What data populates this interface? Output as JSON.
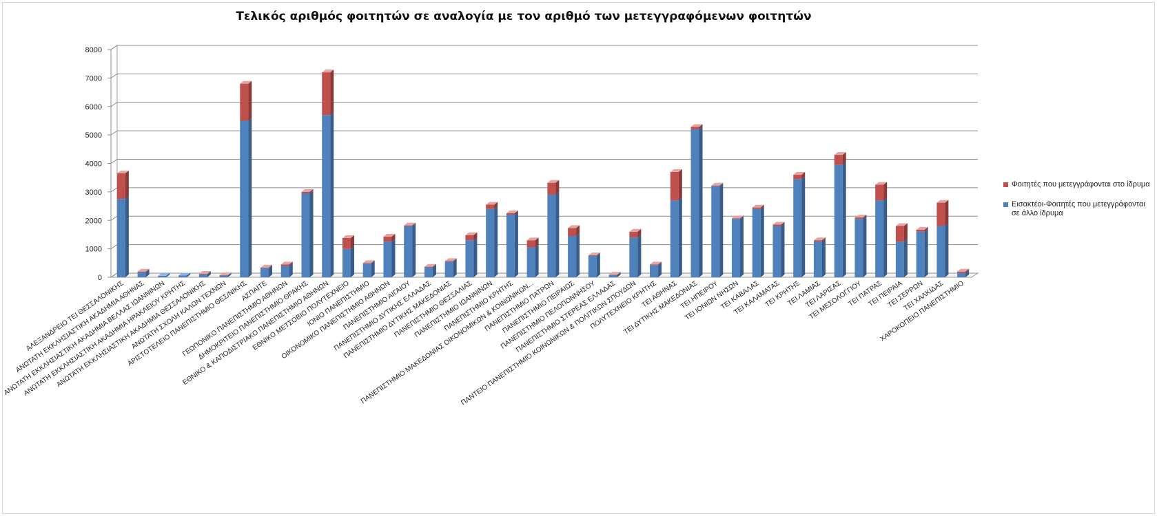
{
  "chart_data": {
    "type": "bar",
    "stacked": true,
    "title": "Τελικός αριθμός φοιτητών σε αναλογία με τον αριθμό των μετεγγραφόμενων φοιτητών",
    "xlabel": "",
    "ylabel": "",
    "ylim": [
      0,
      8000
    ],
    "yticks": [
      0,
      1000,
      2000,
      3000,
      4000,
      5000,
      6000,
      7000,
      8000
    ],
    "grid": true,
    "legend_position": "right",
    "categories": [
      "ΑΛΕΞΑΝΔΡΕΙΟ ΤΕΙ ΘΕΣΣΑΛΟΝΙΚΗΣ",
      "ΑΝΩΤΑΤΗ ΕΚΚΛΗΣΙΑΣΤΙΚΗ ΑΚΑΔΗΜΙΑ ΑΘΗΝΑΣ",
      "ΑΝΩΤΑΤΗ ΕΚΚΛΗΣΙΑΣΤΙΚΗ ΑΚΑΔΗΜΙΑ ΒΕΛΛΑΣ ΙΩΑΝΝΙΝΩΝ",
      "ΑΝΩΤΑΤΗ ΕΚΚΛΗΣΙΑΣΤΙΚΗ ΑΚΑΔΗΜΙΑ ΗΡΑΚΛΕΙΟΥ ΚΡΗΤΗΣ",
      "ΑΝΩΤΑΤΗ ΕΚΚΛΗΣΙΑΣΤΙΚΗ ΑΚΑΔΗΜΙΑ ΘΕΣΣΑΛΟΝΙΚΗΣ",
      "ΑΝΩΤΑΤΗ ΣΧΟΛΗ ΚΑΛΩΝ ΤΕΧΝΩΝ",
      "ΑΡΙΣΤΟΤΕΛΕΙΟ ΠΑΝΕΠΙΣΤΗΜΙΟ ΘΕΣ/ΝΙΚΗΣ",
      "ΑΣΠΑΙΤΕ",
      "ΓΕΩΠΟΝΙΚΟ ΠΑΝΕΠΙΣΤΗΜΙΟ ΑΘΗΝΩΝ",
      "ΔΗΜΟΚΡΙΤΕΙΟ ΠΑΝΕΠΙΣΤΗΜΙΟ ΘΡΑΚΗΣ",
      "ΕΘΝΙΚΟ & ΚΑΠΟΔΙΣΤΡΙΑΚΟ ΠΑΝΕΠΙΣΤΗΜΙΟ ΑΘΗΝΩΝ",
      "ΕΘΝΙΚΟ ΜΕΤΣΟΒΙΟ ΠΟΛΥΤΕΧΝΕΙΟ",
      "ΙΟΝΙΟ ΠΑΝΕΠΙΣΤΗΜΙΟ",
      "ΟΙΚΟΝΟΜΙΚΟ ΠΑΝΕΠΙΣΤΗΜΙΟ ΑΘΗΝΩΝ",
      "ΠΑΝΕΠΙΣΤΗΜΙΟ ΑΙΓΑΙΟΥ",
      "ΠΑΝΕΠΙΣΤΗΜΙΟ ΔΥΤΙΚΗΣ ΕΛΛΑΔΑΣ",
      "ΠΑΝΕΠΙΣΤΗΜΙΟ ΔΥΤΙΚΗΣ ΜΑΚΕΔΟΝΙΑΣ",
      "ΠΑΝΕΠΙΣΤΗΜΙΟ ΘΕΣΣΑΛΙΑΣ",
      "ΠΑΝΕΠΙΣΤΗΜΙΟ ΙΩΑΝΝΙΝΩΝ",
      "ΠΑΝΕΠΙΣΤΗΜΙΟ ΚΡΗΤΗΣ",
      "ΠΑΝΕΠΙΣΤΗΜΙΟ ΜΑΚΕΔΟΝΙΑΣ ΟΙΚΟΝΟΜΙΚΩΝ & ΚΟΙΝΩΝΙΚΩΝ...",
      "ΠΑΝΕΠΙΣΤΗΜΙΟ ΠΑΤΡΩΝ",
      "ΠΑΝΕΠΙΣΤΗΜΙΟ ΠΕΙΡΑΙΩΣ",
      "ΠΑΝΕΠΙΣΤΗΜΙΟ ΠΕΛΟΠΟΝΝΗΣΟΥ",
      "ΠΑΝΕΠΙΣΤΗΜΙΟ ΣΤΕΡΕΑΣ ΕΛΛΑΔΑΣ",
      "ΠΑΝΤΕΙΟ ΠΑΝΕΠΙΣΤΗΜΙΟ ΚΟΙΝΩΝΙΚΩΝ & ΠΟΛΙΤΙΚΩΝ ΣΠΟΥΔΩΝ",
      "ΠΟΛΥΤΕΧΝΕΙΟ ΚΡΗΤΗΣ",
      "ΤΕΙ ΑΘΗΝΑΣ",
      "ΤΕΙ ΔΥΤΙΚΗΣ ΜΑΚΕΔΟΝΙΑΣ",
      "ΤΕΙ ΗΠΕΙΡΟΥ",
      "ΤΕΙ ΙΟΝΙΩΝ ΝΗΣΩΝ",
      "ΤΕΙ ΚΑΒΑΛΑΣ",
      "ΤΕΙ ΚΑΛΑΜΑΤΑΣ",
      "ΤΕΙ ΚΡΗΤΗΣ",
      "ΤΕΙ ΛΑΜΙΑΣ",
      "ΤΕΙ ΛΑΡΙΣΑΣ",
      "ΤΕΙ ΜΕΣΟΛΟΓΓΙΟΥ",
      "ΤΕΙ ΠΑΤΡΑΣ",
      "ΤΕΙ ΠΕΙΡΑΙΑ",
      "ΤΕΙ ΣΕΡΡΩΝ",
      "ΤΕΙ ΧΑΛΚΙΔΑΣ",
      "ΧΑΡΟΚΟΠΕΙΟ ΠΑΝΕΠΙΣΤΗΜΙΟ"
    ],
    "series": [
      {
        "name": "Εισακτέοι-Φοιτητές που μετεγγράφονται σε άλλο ίδρυμα",
        "color": "#4f81bd",
        "top_color": "#8fb4e3",
        "side_color": "#385d8a",
        "values": [
          2750,
          180,
          50,
          60,
          100,
          60,
          5500,
          320,
          400,
          2950,
          5700,
          1000,
          480,
          1250,
          1800,
          350,
          550,
          1300,
          2400,
          2200,
          1050,
          2900,
          1450,
          750,
          80,
          1400,
          430,
          2700,
          5200,
          3200,
          2050,
          2400,
          1800,
          3450,
          1250,
          3950,
          2050,
          2700,
          1250,
          1600,
          1800,
          150
        ]
      },
      {
        "name": "Φοιτητές που μετεγγράφονται στο ίδρυμα",
        "color": "#c0504d",
        "top_color": "#e4a6a4",
        "side_color": "#8c3836",
        "values": [
          900,
          20,
          0,
          0,
          20,
          10,
          1300,
          20,
          50,
          50,
          1500,
          380,
          20,
          180,
          20,
          20,
          20,
          180,
          150,
          50,
          250,
          420,
          280,
          20,
          10,
          200,
          20,
          1000,
          80,
          20,
          20,
          50,
          50,
          150,
          50,
          350,
          50,
          550,
          550,
          70,
          820,
          50
        ]
      }
    ]
  },
  "legend": {
    "items": [
      {
        "label": "Φοιτητές που μετεγγράφονται στο ίδρυμα",
        "color": "#c0504d"
      },
      {
        "label": "Εισακτέοι-Φοιτητές που μετεγγράφονται σε άλλο ίδρυμα",
        "color": "#4f81bd"
      }
    ]
  }
}
